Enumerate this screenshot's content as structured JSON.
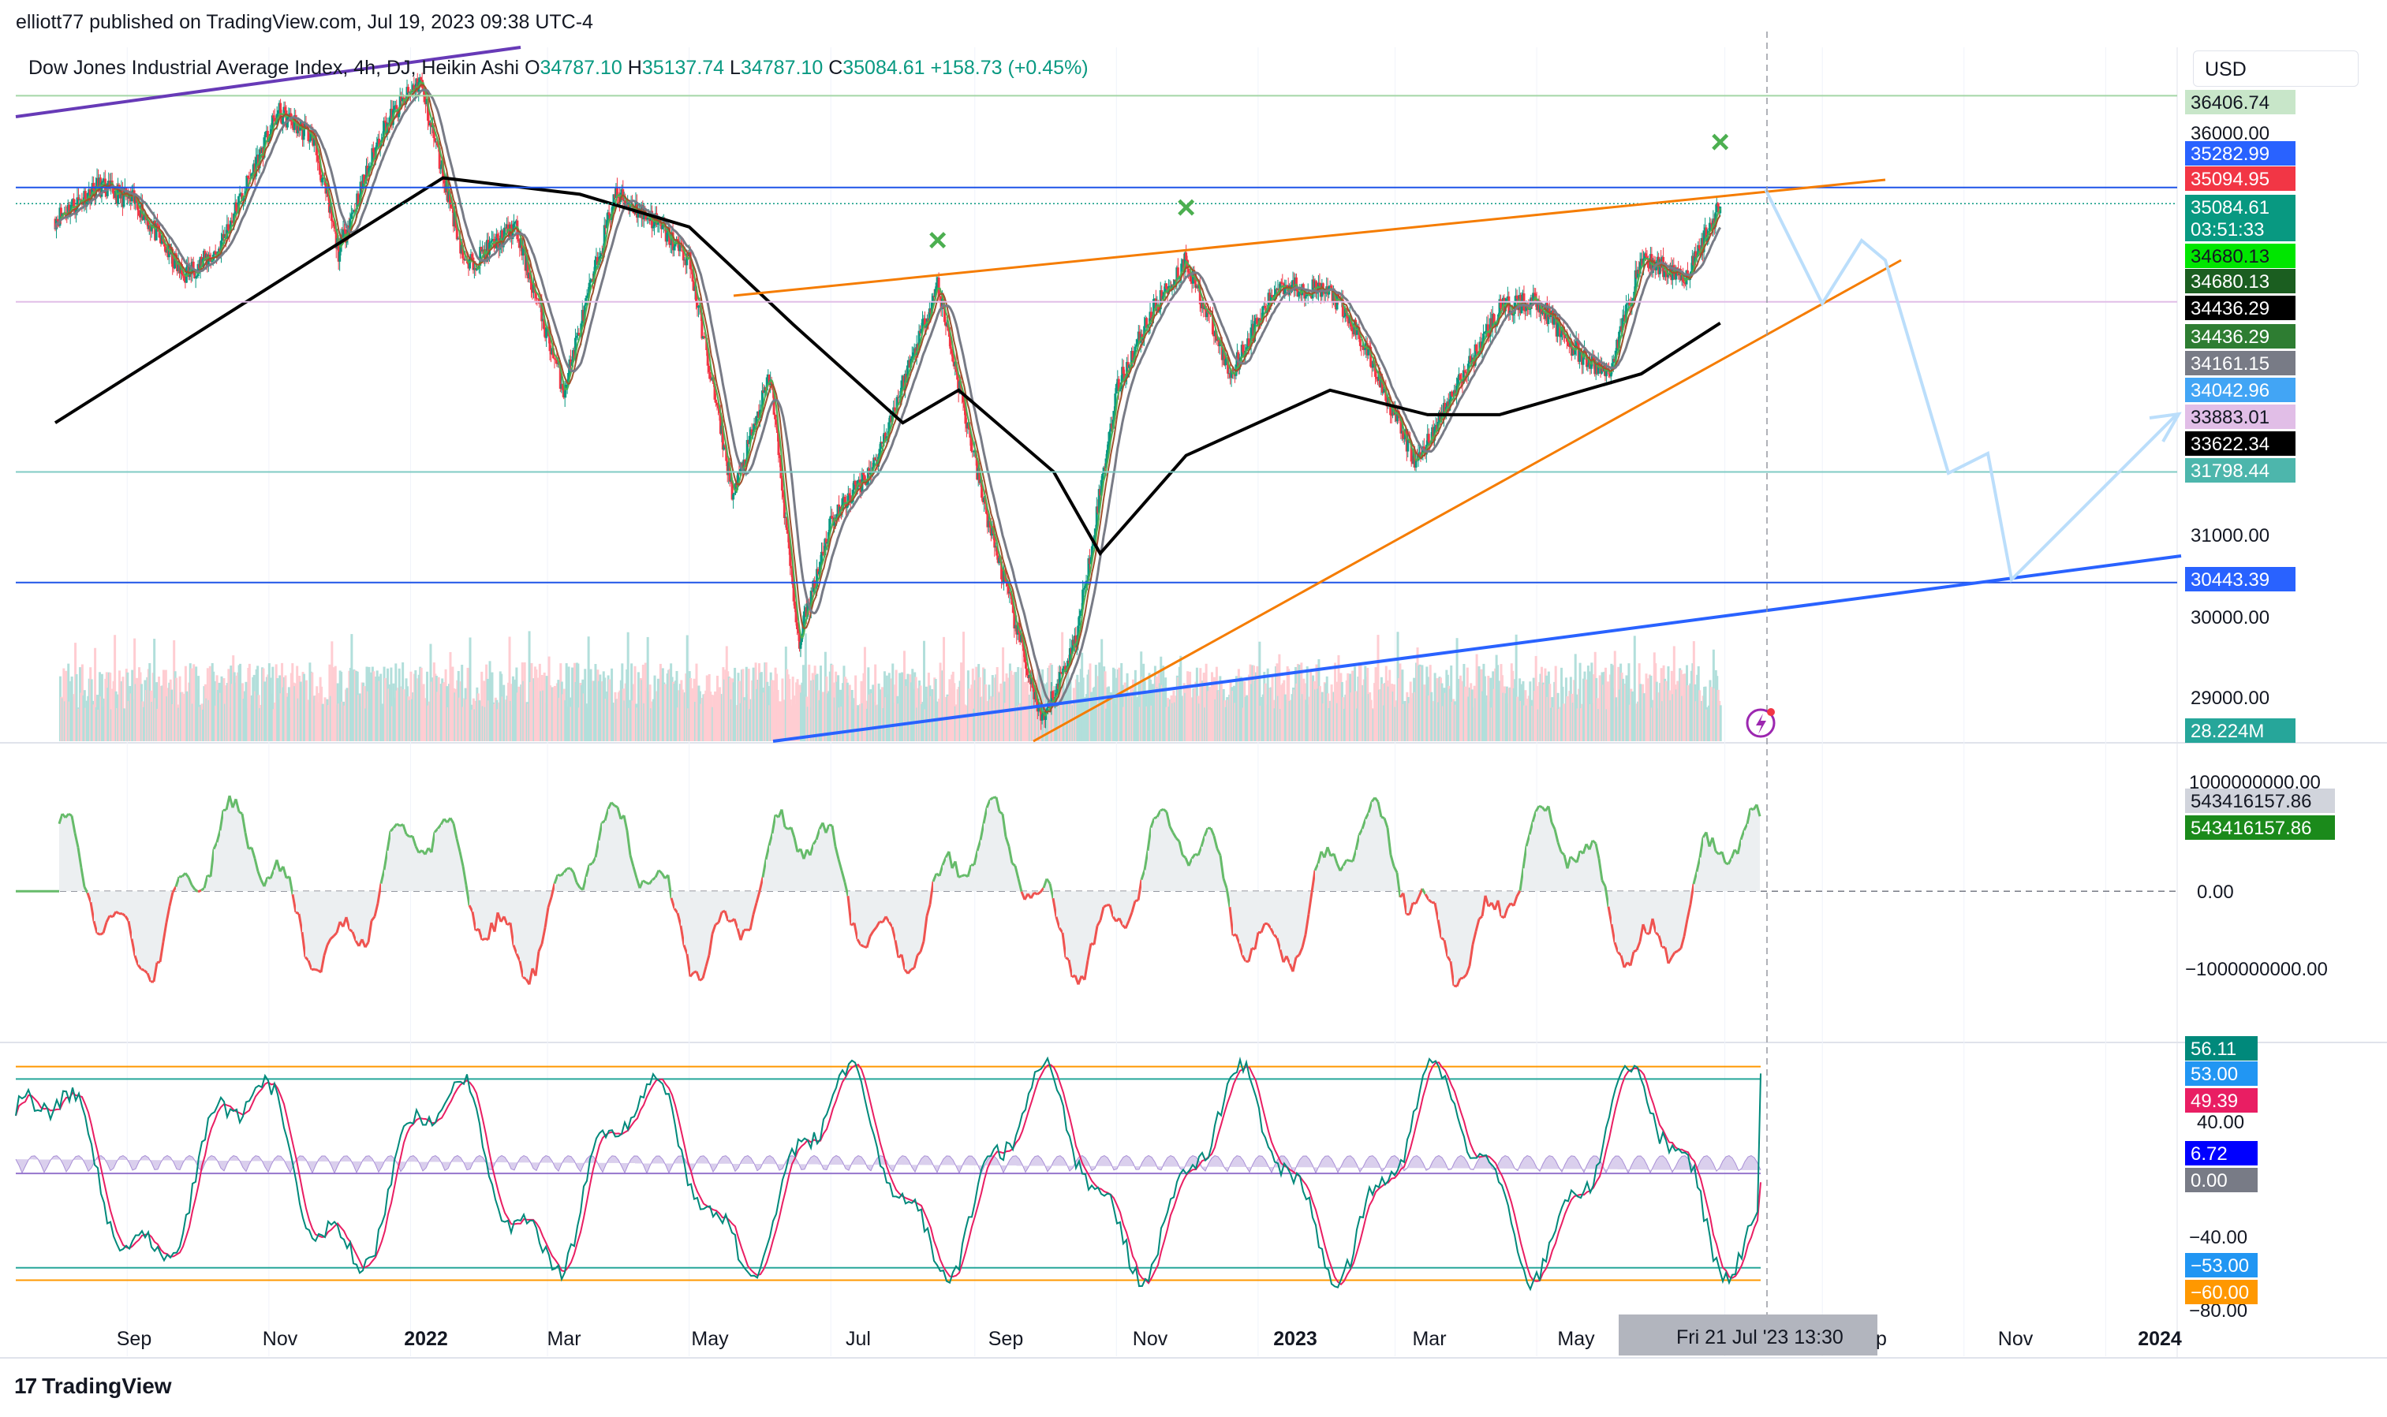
{
  "header": {
    "text": "elliott77 published on TradingView.com, Jul 19, 2023 09:38 UTC-4"
  },
  "legend": {
    "symbol": "Dow Jones Industrial Average Index, 4h, DJ, Heikin Ashi",
    "o_label": "O",
    "o": "34787.10",
    "h_label": "H",
    "h": "35137.74",
    "l_label": "L",
    "l": "34787.10",
    "c_label": "C",
    "c": "35084.61",
    "change": "+158.73 (+0.45%)"
  },
  "currency": "USD",
  "brand": {
    "logo": "17",
    "name": "TradingView"
  },
  "colors": {
    "up": "#089981",
    "down": "#f23645",
    "bg": "#ffffff",
    "ma_black": "#000000",
    "ma_gray": "#787b86",
    "ma_brown": "#a0522d",
    "ma_green": "#4caf50",
    "orange": "#f57c00",
    "blue_line": "#2962ff",
    "purple_line": "#673ab7",
    "projection": "#bbdefb"
  },
  "chart_data": [
    {
      "type": "candlestick",
      "title": "Dow Jones Industrial Average Index, 4h, DJ, Heikin Ashi",
      "x_ticks": [
        "Sep",
        "Nov",
        "2022",
        "Mar",
        "May",
        "Jul",
        "Sep",
        "Nov",
        "2023",
        "Mar",
        "May",
        "Fri 21 Jul '23   13:30",
        "p",
        "Nov",
        "2024"
      ],
      "y_ticks": [
        "36000.00",
        "31000.00",
        "30000.00",
        "29000.00"
      ],
      "ylim": [
        28500,
        37000
      ],
      "series_path": [
        [
          "2021-08-01",
          34900
        ],
        [
          "2021-08-20",
          35300
        ],
        [
          "2021-09-05",
          35100
        ],
        [
          "2021-09-25",
          34200
        ],
        [
          "2021-10-10",
          34500
        ],
        [
          "2021-11-05",
          36200
        ],
        [
          "2021-11-20",
          35900
        ],
        [
          "2021-12-01",
          34500
        ],
        [
          "2021-12-20",
          36000
        ],
        [
          "2022-01-05",
          36600
        ],
        [
          "2022-01-25",
          34300
        ],
        [
          "2022-02-15",
          34800
        ],
        [
          "2022-03-08",
          32800
        ],
        [
          "2022-03-30",
          35200
        ],
        [
          "2022-04-15",
          34900
        ],
        [
          "2022-05-01",
          34400
        ],
        [
          "2022-05-20",
          31500
        ],
        [
          "2022-06-05",
          33000
        ],
        [
          "2022-06-17",
          29700
        ],
        [
          "2022-07-01",
          31200
        ],
        [
          "2022-07-20",
          31900
        ],
        [
          "2022-08-16",
          34100
        ],
        [
          "2022-09-05",
          31400
        ],
        [
          "2022-09-30",
          28700
        ],
        [
          "2022-10-15",
          29800
        ],
        [
          "2022-11-01",
          32800
        ],
        [
          "2022-11-15",
          33700
        ],
        [
          "2022-12-01",
          34400
        ],
        [
          "2022-12-20",
          33000
        ],
        [
          "2023-01-10",
          34100
        ],
        [
          "2023-02-01",
          34000
        ],
        [
          "2023-02-15",
          33400
        ],
        [
          "2023-03-10",
          31900
        ],
        [
          "2023-03-25",
          32700
        ],
        [
          "2023-04-15",
          33800
        ],
        [
          "2023-05-01",
          33900
        ],
        [
          "2023-05-20",
          33200
        ],
        [
          "2023-06-01",
          33000
        ],
        [
          "2023-06-15",
          34400
        ],
        [
          "2023-07-05",
          34200
        ],
        [
          "2023-07-19",
          35084.61
        ]
      ],
      "ma_200": [
        [
          "2021-08-01",
          32400
        ],
        [
          "2021-10-01",
          33500
        ],
        [
          "2021-11-20",
          34400
        ],
        [
          "2022-01-15",
          35400
        ],
        [
          "2022-03-15",
          35200
        ],
        [
          "2022-05-01",
          34800
        ],
        [
          "2022-06-15",
          33600
        ],
        [
          "2022-08-01",
          32400
        ],
        [
          "2022-08-25",
          32800
        ],
        [
          "2022-10-05",
          31800
        ],
        [
          "2022-10-25",
          30800
        ],
        [
          "2022-12-01",
          32000
        ],
        [
          "2023-02-01",
          32800
        ],
        [
          "2023-03-15",
          32500
        ],
        [
          "2023-04-15",
          32500
        ],
        [
          "2023-06-15",
          33000
        ],
        [
          "2023-07-19",
          33622.34
        ]
      ],
      "horizontal_levels": [
        {
          "value": 36406.74,
          "color": "#a5d6a7"
        },
        {
          "value": 35282.99,
          "color": "#1e54e8"
        },
        {
          "value": 35084.61,
          "color": "#089981"
        },
        {
          "value": 33883.01,
          "color": "#e1bee7"
        },
        {
          "value": 31798.44,
          "color": "#80cbc4"
        },
        {
          "value": 30443.39,
          "color": "#1e54e8"
        }
      ],
      "markers": [
        {
          "label": "×",
          "date": "2022-08-16",
          "value": 34600
        },
        {
          "label": "×",
          "date": "2022-12-01",
          "value": 35000
        },
        {
          "label": "×",
          "date": "2023-07-19",
          "value": 35800
        }
      ],
      "price_labels": [
        {
          "text": "36406.74",
          "bg": "#c8e6c9",
          "fg": "#131722"
        },
        {
          "text": "36000.00",
          "bg": "",
          "fg": "#131722"
        },
        {
          "text": "35282.99",
          "bg": "#2962ff",
          "fg": "#ffffff"
        },
        {
          "text": "35094.95",
          "bg": "#f23645",
          "fg": "#ffffff"
        },
        {
          "text": "35084.61",
          "bg": "#089981",
          "fg": "#ffffff"
        },
        {
          "text": "03:51:33",
          "bg": "#089981",
          "fg": "#ffffff"
        },
        {
          "text": "34680.13",
          "bg": "#00e600",
          "fg": "#131722"
        },
        {
          "text": "34680.13",
          "bg": "#1b5e20",
          "fg": "#ffffff"
        },
        {
          "text": "34436.29",
          "bg": "#000000",
          "fg": "#ffffff"
        },
        {
          "text": "34436.29",
          "bg": "#2e7d32",
          "fg": "#ffffff"
        },
        {
          "text": "34161.15",
          "bg": "#787b86",
          "fg": "#ffffff"
        },
        {
          "text": "34042.96",
          "bg": "#42a5f5",
          "fg": "#ffffff"
        },
        {
          "text": "33883.01",
          "bg": "#e1bee7",
          "fg": "#131722"
        },
        {
          "text": "33622.34",
          "bg": "#000000",
          "fg": "#ffffff"
        },
        {
          "text": "31798.44",
          "bg": "#4db6ac",
          "fg": "#ffffff"
        },
        {
          "text": "31000.00",
          "bg": "",
          "fg": "#131722"
        },
        {
          "text": "30443.39",
          "bg": "#2962ff",
          "fg": "#ffffff"
        },
        {
          "text": "30000.00",
          "bg": "",
          "fg": "#131722"
        },
        {
          "text": "29000.00",
          "bg": "",
          "fg": "#131722"
        },
        {
          "text": "28.224M",
          "bg": "#26a69a",
          "fg": "#ffffff"
        }
      ]
    },
    {
      "type": "area",
      "y_ticks": [
        "1000000000.00",
        "0.00",
        "−1000000000.00"
      ],
      "ylim": [
        -1300000000,
        1200000000
      ],
      "price_labels": [
        {
          "text": "543416157.86",
          "bg": "#d1d4dc",
          "fg": "#131722"
        },
        {
          "text": "543416157.86",
          "bg": "#1b8a1b",
          "fg": "#ffffff"
        }
      ]
    },
    {
      "type": "line",
      "y_ticks": [
        "40.00",
        "−40.00",
        "−80.00"
      ],
      "ylim": [
        -85,
        70
      ],
      "levels": [
        {
          "value": 60,
          "color": "#ff9800"
        },
        {
          "value": 53,
          "color": "#26a69a"
        },
        {
          "value": 0,
          "color": "#9575cd"
        },
        {
          "value": -53,
          "color": "#26a69a"
        },
        {
          "value": -60,
          "color": "#ff9800"
        }
      ],
      "price_labels": [
        {
          "text": "56.11",
          "bg": "#00897b",
          "fg": "#ffffff"
        },
        {
          "text": "53.00",
          "bg": "#2196f3",
          "fg": "#ffffff"
        },
        {
          "text": "49.39",
          "bg": "#e91e63",
          "fg": "#ffffff"
        },
        {
          "text": "6.72",
          "bg": "#0000ff",
          "fg": "#ffffff"
        },
        {
          "text": "0.00",
          "bg": "#787b86",
          "fg": "#ffffff"
        },
        {
          "text": "−53.00",
          "bg": "#2196f3",
          "fg": "#ffffff"
        },
        {
          "text": "−60.00",
          "bg": "#ff9800",
          "fg": "#ffffff"
        }
      ]
    }
  ]
}
